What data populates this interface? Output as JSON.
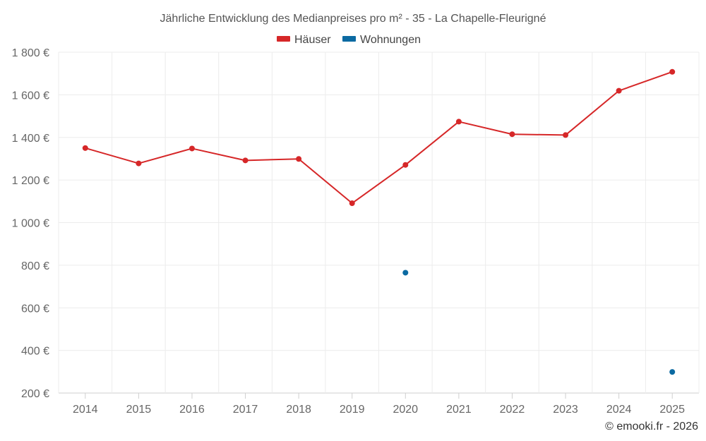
{
  "chart_data": {
    "type": "line",
    "title": "Jährliche Entwicklung des Medianpreises pro m² - 35 - La Chapelle-Fleurigné",
    "categories": [
      "2014",
      "2015",
      "2016",
      "2017",
      "2018",
      "2019",
      "2020",
      "2021",
      "2022",
      "2023",
      "2024",
      "2025"
    ],
    "series": [
      {
        "name": "Häuser",
        "color": "#d62728",
        "values": [
          1350,
          1278,
          1348,
          1292,
          1299,
          1091,
          1271,
          1474,
          1415,
          1411,
          1619,
          1708
        ]
      },
      {
        "name": "Wohnungen",
        "color": "#0b6aa2",
        "values": [
          null,
          null,
          null,
          null,
          null,
          null,
          765,
          null,
          null,
          null,
          null,
          299
        ]
      }
    ],
    "y_ticks": [
      "200 €",
      "400 €",
      "600 €",
      "800 €",
      "1 000 €",
      "1 200 €",
      "1 400 €",
      "1 600 €",
      "1 800 €"
    ],
    "ylim": [
      200,
      1800
    ],
    "xlabel": "",
    "ylabel": "",
    "grid": true,
    "legend_position": "top-center"
  },
  "credit": "© emooki.fr - 2026"
}
